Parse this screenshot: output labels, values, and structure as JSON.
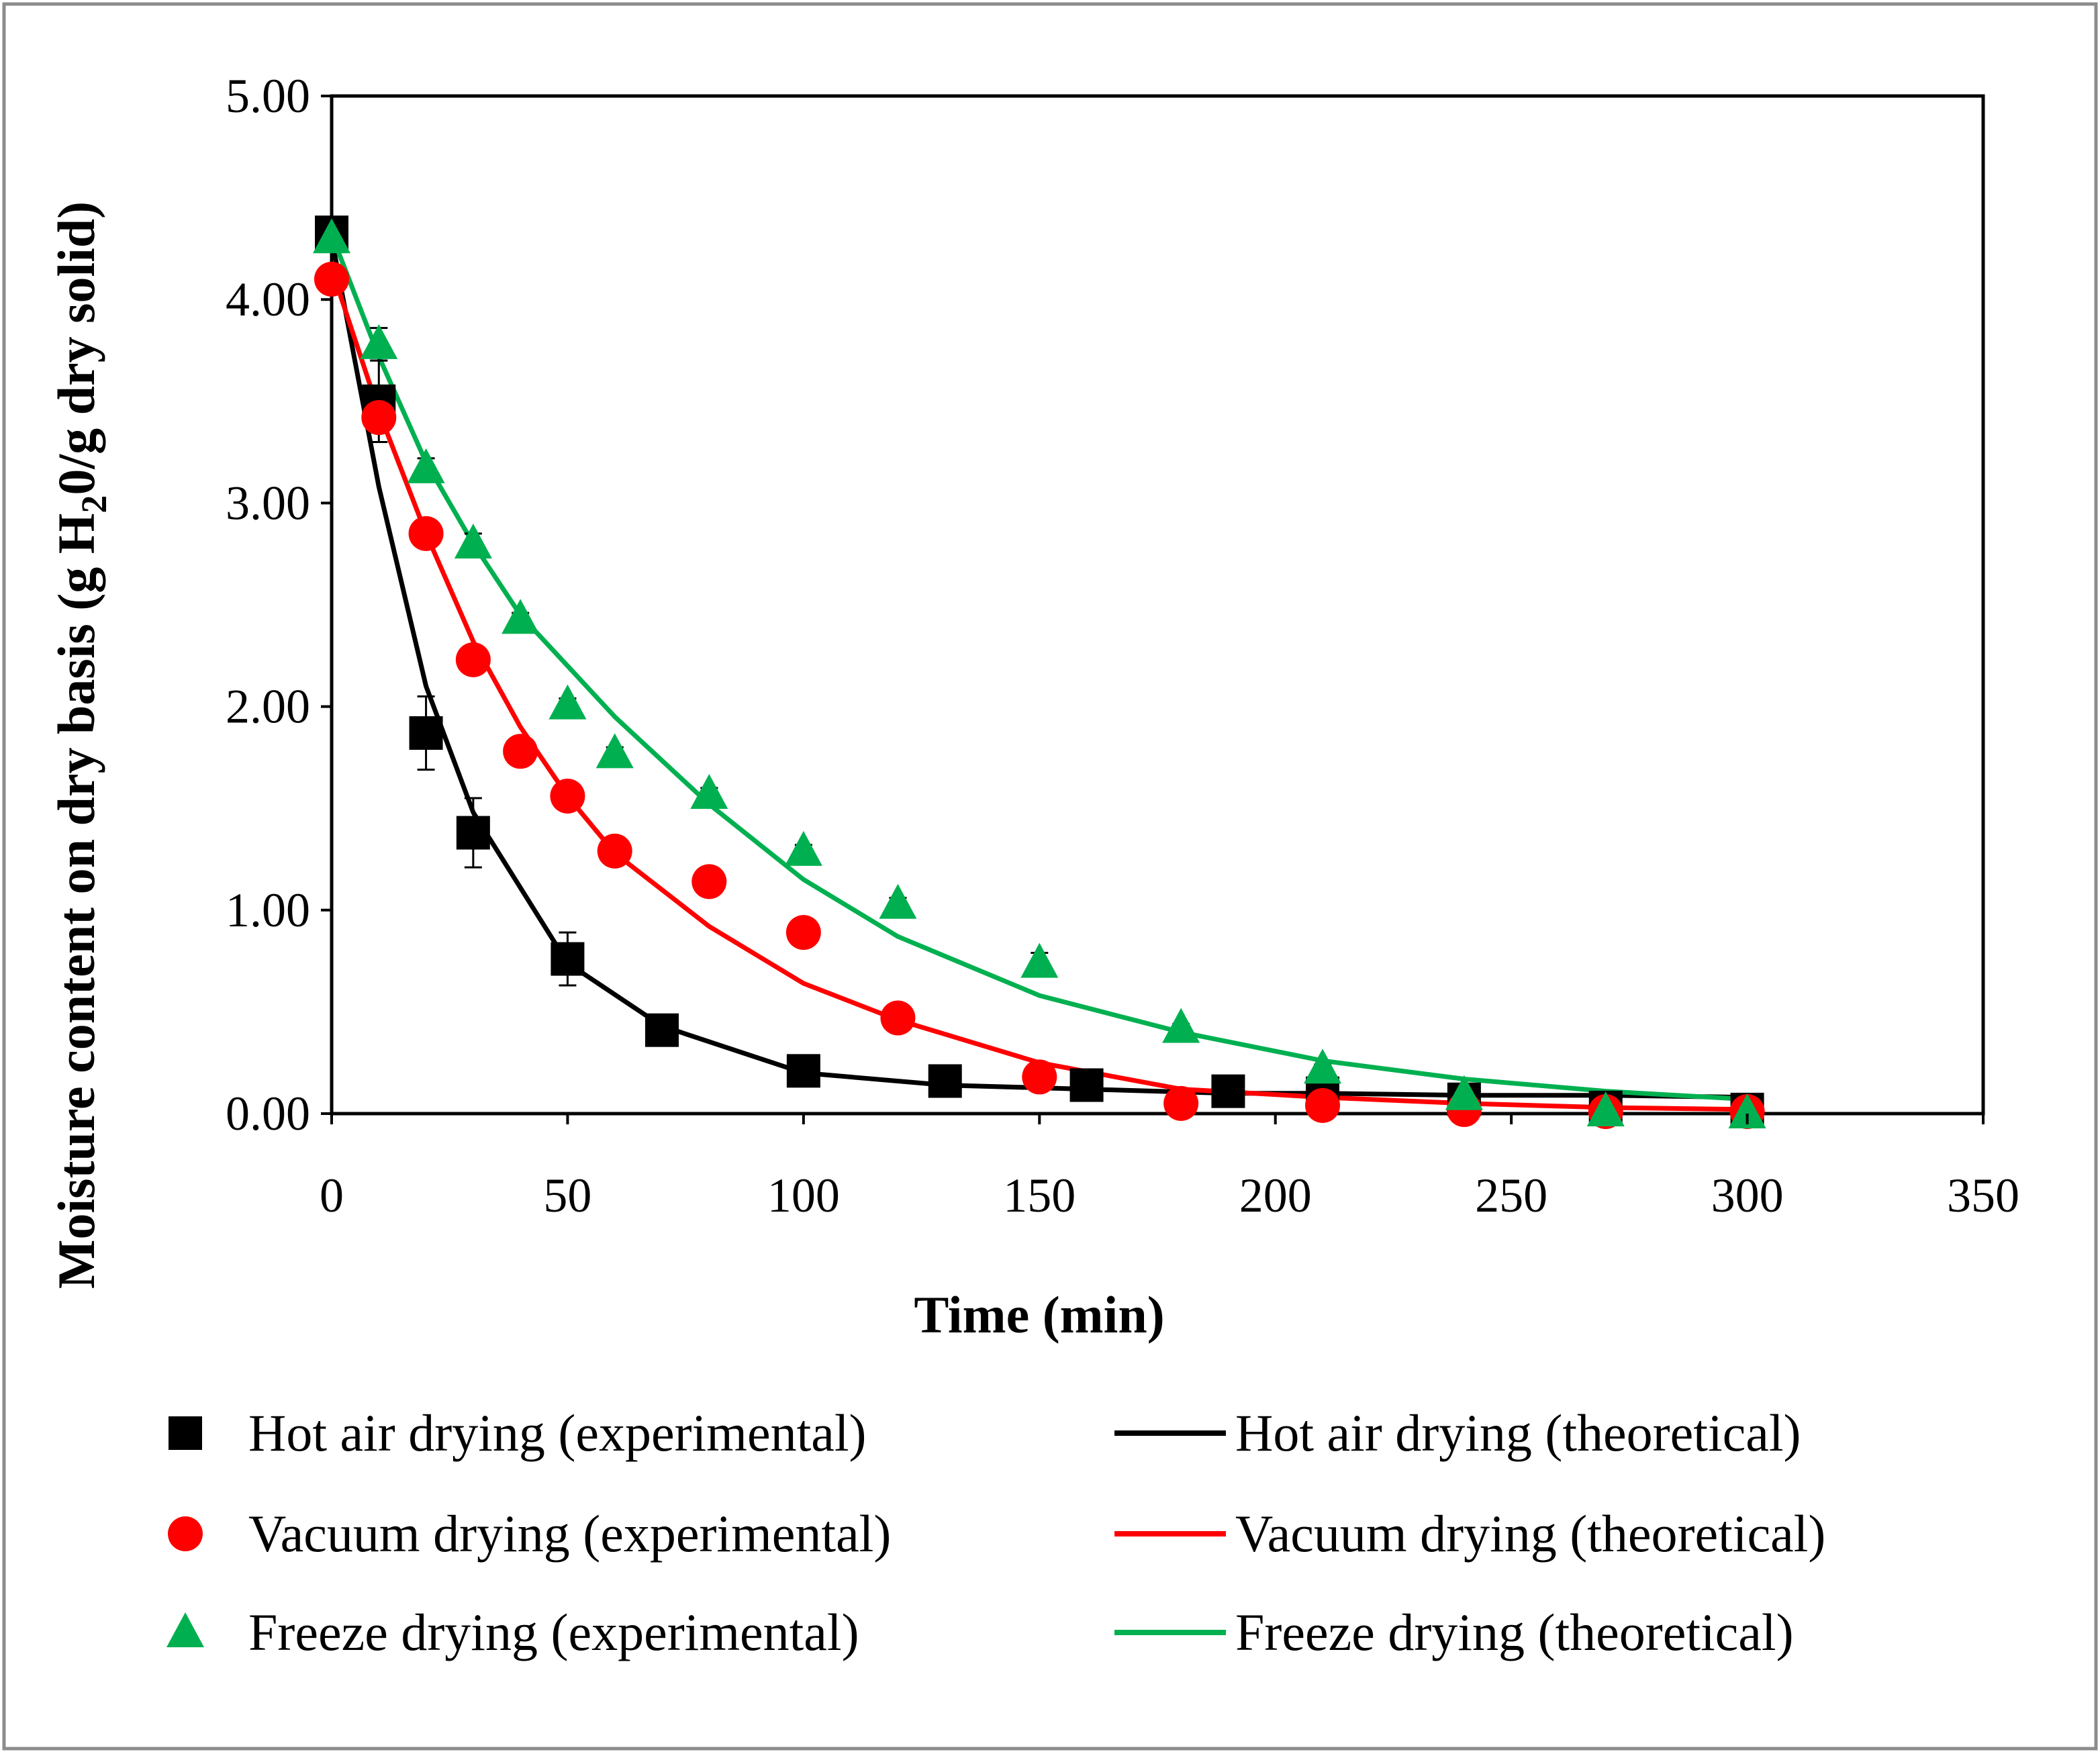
{
  "chart_data": {
    "type": "scatter",
    "title": "",
    "xlabel": "Time (min)",
    "ylabel_prefix": "Moisture content on dry basis (g H",
    "ylabel_subscript": "2",
    "ylabel_suffix": "0/g dry solid)",
    "xlim": [
      0,
      350
    ],
    "ylim": [
      0,
      5
    ],
    "x_ticks": [
      {
        "value": 0,
        "label": "0"
      },
      {
        "value": 50,
        "label": "50"
      },
      {
        "value": 100,
        "label": "100"
      },
      {
        "value": 150,
        "label": "150"
      },
      {
        "value": 200,
        "label": "200"
      },
      {
        "value": 250,
        "label": "250"
      },
      {
        "value": 300,
        "label": "300"
      },
      {
        "value": 350,
        "label": "350"
      }
    ],
    "y_ticks": [
      {
        "value": 0,
        "label": "0.00"
      },
      {
        "value": 1,
        "label": "1.00"
      },
      {
        "value": 2,
        "label": "2.00"
      },
      {
        "value": 3,
        "label": "3.00"
      },
      {
        "value": 4,
        "label": "4.00"
      },
      {
        "value": 5,
        "label": "5.00"
      }
    ],
    "grid": false,
    "legend_position": "bottom",
    "series": [
      {
        "id": "hot-air-exp",
        "name": "Hot air drying (experimental)",
        "kind": "markers",
        "marker": "square",
        "color": "#000000",
        "x": [
          0,
          10,
          20,
          30,
          50,
          70,
          100,
          130,
          160,
          190,
          210,
          240,
          270,
          300
        ],
        "y": [
          4.33,
          3.5,
          1.87,
          1.38,
          0.76,
          0.41,
          0.21,
          0.16,
          0.14,
          0.11,
          0.1,
          0.07,
          0.03,
          0.02
        ],
        "err": [
          0,
          0.2,
          0.18,
          0.17,
          0.13,
          0.05,
          0.03,
          0.02,
          0.02,
          0.01,
          0.01,
          0.01,
          0.01,
          0.01
        ]
      },
      {
        "id": "vacuum-exp",
        "name": "Vacuum drying (experimental)",
        "kind": "markers",
        "marker": "circle",
        "color": "#ff0000",
        "x": [
          0,
          10,
          20,
          30,
          40,
          50,
          60,
          80,
          100,
          120,
          150,
          180,
          210,
          240,
          270,
          300
        ],
        "y": [
          4.1,
          3.42,
          2.85,
          2.23,
          1.78,
          1.56,
          1.29,
          1.14,
          0.89,
          0.47,
          0.18,
          0.05,
          0.04,
          0.02,
          0.01,
          0.01
        ],
        "err": [
          0,
          0.02,
          0.02,
          0.02,
          0.05,
          0.06,
          0.03,
          0.02,
          0.02,
          0.02,
          0.01,
          0.01,
          0.01,
          0.01,
          0.01,
          0.01
        ]
      },
      {
        "id": "freeze-exp",
        "name": "Freeze drying (experimental)",
        "kind": "markers",
        "marker": "triangle",
        "color": "#00b050",
        "x": [
          0,
          10,
          20,
          30,
          40,
          50,
          60,
          80,
          100,
          120,
          150,
          180,
          210,
          240,
          270,
          300
        ],
        "y": [
          4.3,
          3.78,
          3.17,
          2.8,
          2.43,
          2.01,
          1.77,
          1.57,
          1.29,
          1.03,
          0.74,
          0.42,
          0.22,
          0.09,
          0.01,
          0.0
        ],
        "err": [
          0,
          0.08,
          0.05,
          0.05,
          0.03,
          0.03,
          0.03,
          0.03,
          0.03,
          0.03,
          0.05,
          0.02,
          0.02,
          0.02,
          0.01,
          0.01
        ]
      },
      {
        "id": "hot-air-theory",
        "name": "Hot air drying (theoretical)",
        "kind": "line",
        "color": "#000000",
        "x": [
          0,
          10,
          20,
          30,
          50,
          70,
          100,
          130,
          160,
          190,
          210,
          240,
          270,
          300
        ],
        "y": [
          4.3,
          3.08,
          2.1,
          1.48,
          0.74,
          0.43,
          0.2,
          0.14,
          0.12,
          0.1,
          0.1,
          0.09,
          0.09,
          0.08
        ]
      },
      {
        "id": "vacuum-theory",
        "name": "Vacuum drying (theoretical)",
        "kind": "line",
        "color": "#ff0000",
        "x": [
          0,
          10,
          20,
          30,
          40,
          50,
          60,
          80,
          100,
          120,
          150,
          180,
          210,
          240,
          270,
          300
        ],
        "y": [
          4.15,
          3.45,
          2.85,
          2.32,
          1.9,
          1.56,
          1.28,
          0.92,
          0.64,
          0.46,
          0.25,
          0.12,
          0.08,
          0.05,
          0.03,
          0.02
        ]
      },
      {
        "id": "freeze-theory",
        "name": "Freeze drying (theoretical)",
        "kind": "line",
        "color": "#00b050",
        "x": [
          0,
          10,
          20,
          30,
          40,
          50,
          60,
          80,
          100,
          120,
          150,
          180,
          210,
          240,
          270,
          300
        ],
        "y": [
          4.32,
          3.72,
          3.2,
          2.8,
          2.45,
          2.2,
          1.95,
          1.52,
          1.15,
          0.87,
          0.58,
          0.4,
          0.26,
          0.17,
          0.11,
          0.07
        ]
      }
    ]
  }
}
